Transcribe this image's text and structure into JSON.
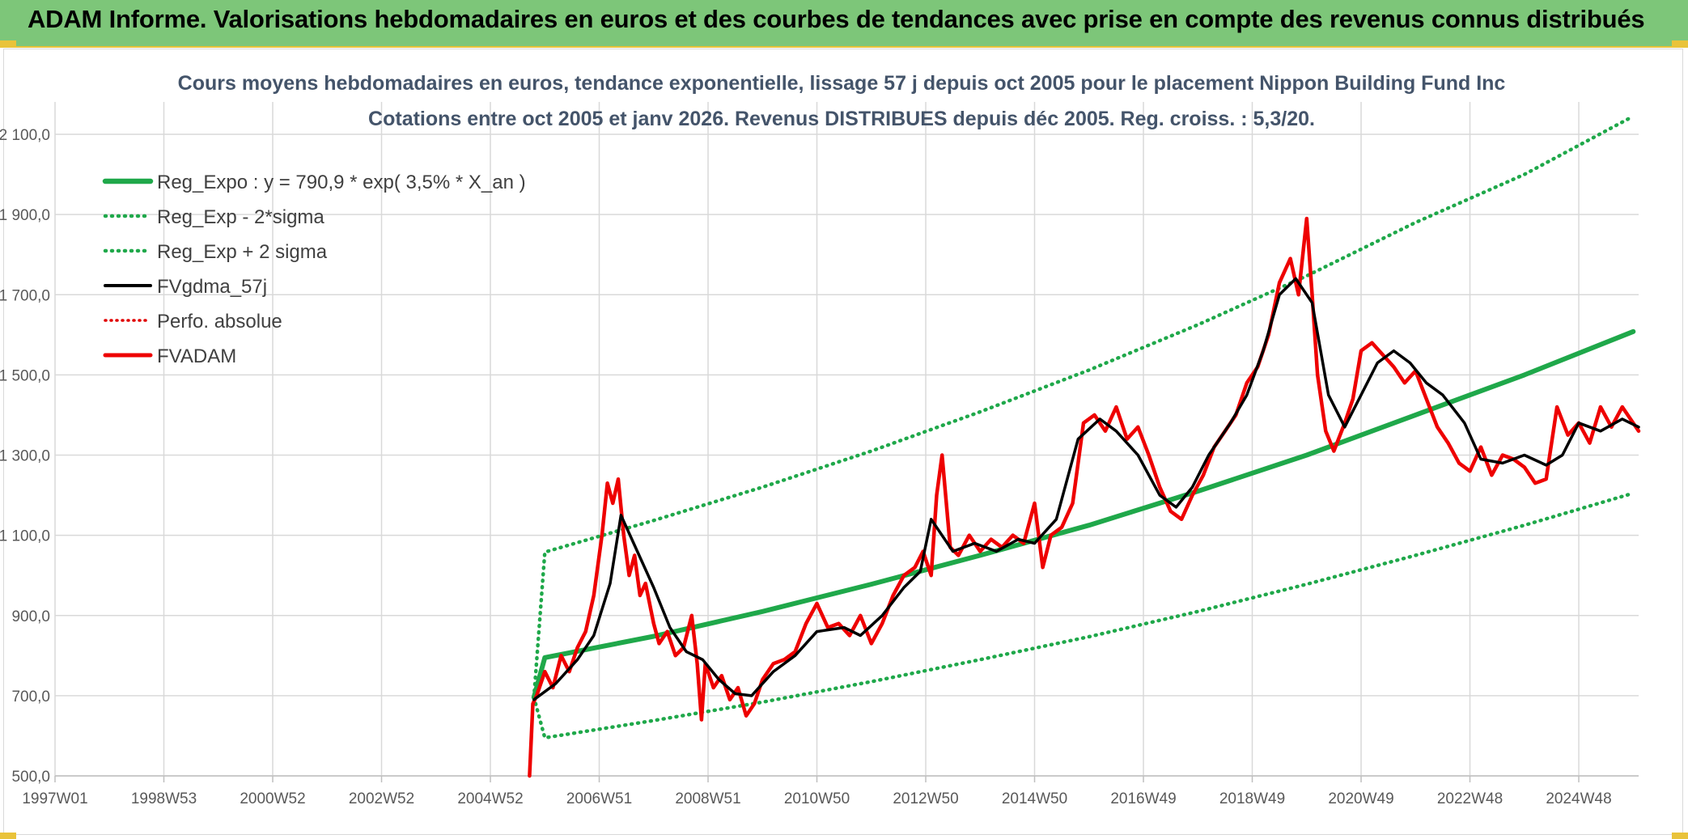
{
  "header": {
    "title": "ADAM Informe. Valorisations hebdomadaires en euros et des courbes de tendances avec prise en compte des revenus connus distribués"
  },
  "colors": {
    "banner": "#7dc679",
    "accent": "#e9c33a",
    "reg_expo": "#1fa84a",
    "sigma_bands": "#1fa84a",
    "fvgdma": "#000000",
    "perfo": "#e00000",
    "fvadam": "#ee0000",
    "grid": "#d9d9d9"
  },
  "chart_data": {
    "type": "line",
    "title": "Cours moyens hebdomadaires en euros, tendance exponentielle, lissage 57 j depuis oct 2005 pour le placement Nippon Building Fund Inc",
    "subtitle": "Cotations entre oct 2005 et janv 2026. Revenus DISTRIBUES depuis déc 2005. Reg. croiss. : 5,3/20.",
    "xlabel": "",
    "ylabel": "",
    "ylim": [
      500,
      2100
    ],
    "xlim": [
      1997.0,
      2026.1
    ],
    "grid": true,
    "legend_position": "top-left",
    "y_ticks": [
      "500,0",
      "700,0",
      "900,0",
      "1 100,0",
      "1 300,0",
      "1 500,0",
      "1 700,0",
      "1 900,0",
      "2 100,0"
    ],
    "y_tick_values": [
      500,
      700,
      900,
      1100,
      1300,
      1500,
      1700,
      1900,
      2100
    ],
    "x_ticks": [
      "1997W01",
      "1998W53",
      "2000W52",
      "2002W52",
      "2004W52",
      "2006W51",
      "2008W51",
      "2010W50",
      "2012W50",
      "2014W50",
      "2016W49",
      "2018W49",
      "2020W49",
      "2022W48",
      "2024W48"
    ],
    "x_tick_values": [
      1997.0,
      1999.0,
      2001.0,
      2003.0,
      2005.0,
      2007.0,
      2009.0,
      2011.0,
      2013.0,
      2015.0,
      2017.0,
      2019.0,
      2021.0,
      2023.0,
      2025.0
    ],
    "series": [
      {
        "name": "Reg_Expo : y = 790,9 * exp( 3,5% *  X_an )",
        "style": "solid",
        "x": [
          2005.8,
          2006.0,
          2008.0,
          2010.0,
          2012.0,
          2014.0,
          2016.0,
          2018.0,
          2020.0,
          2022.0,
          2024.0,
          2026.0
        ],
        "values": [
          696,
          795,
          848,
          910,
          978,
          1050,
          1125,
          1210,
          1300,
          1400,
          1500,
          1608
        ]
      },
      {
        "name": "Reg_Exp - 2*sigma",
        "style": "dotted",
        "x": [
          2005.8,
          2006.0,
          2008.0,
          2010.0,
          2012.0,
          2014.0,
          2016.0,
          2018.0,
          2020.0,
          2022.0,
          2024.0,
          2026.0
        ],
        "values": [
          696,
          595,
          638,
          684,
          735,
          790,
          847,
          910,
          978,
          1050,
          1125,
          1205
        ]
      },
      {
        "name": "Reg_Exp + 2 sigma",
        "style": "dotted",
        "x": [
          2005.8,
          2006.0,
          2008.0,
          2010.0,
          2012.0,
          2014.0,
          2016.0,
          2018.0,
          2020.0,
          2022.0,
          2024.0,
          2026.0
        ],
        "values": [
          696,
          1058,
          1137,
          1220,
          1310,
          1408,
          1512,
          1625,
          1747,
          1880,
          2000,
          2145
        ]
      },
      {
        "name": "FVgdma_57j",
        "style": "solid",
        "x": [
          2005.8,
          2006.2,
          2006.6,
          2006.9,
          2007.2,
          2007.4,
          2007.7,
          2008.0,
          2008.3,
          2008.6,
          2008.9,
          2009.2,
          2009.5,
          2009.8,
          2010.2,
          2010.6,
          2011.0,
          2011.5,
          2011.8,
          2012.2,
          2012.6,
          2012.9,
          2013.1,
          2013.5,
          2013.9,
          2014.3,
          2014.7,
          2015.0,
          2015.4,
          2015.8,
          2016.2,
          2016.5,
          2016.9,
          2017.3,
          2017.6,
          2017.9,
          2018.2,
          2018.6,
          2018.9,
          2019.2,
          2019.5,
          2019.8,
          2020.1,
          2020.4,
          2020.7,
          2021.0,
          2021.3,
          2021.6,
          2021.9,
          2022.2,
          2022.5,
          2022.9,
          2023.2,
          2023.6,
          2024.0,
          2024.4,
          2024.7,
          2025.0,
          2025.4,
          2025.8,
          2026.1
        ],
        "values": [
          690,
          730,
          790,
          850,
          980,
          1150,
          1060,
          970,
          870,
          810,
          790,
          740,
          705,
          700,
          760,
          800,
          860,
          870,
          850,
          900,
          970,
          1010,
          1140,
          1060,
          1080,
          1060,
          1090,
          1080,
          1140,
          1340,
          1390,
          1360,
          1300,
          1200,
          1170,
          1220,
          1300,
          1380,
          1450,
          1560,
          1700,
          1740,
          1680,
          1450,
          1370,
          1450,
          1530,
          1560,
          1530,
          1480,
          1450,
          1380,
          1290,
          1280,
          1300,
          1275,
          1300,
          1380,
          1360,
          1390,
          1370
        ]
      },
      {
        "name": "Perfo. absolue",
        "style": "dotted",
        "x": [],
        "values": []
      },
      {
        "name": "FVADAM",
        "style": "solid",
        "x": [
          2005.72,
          2005.78,
          2005.85,
          2006.0,
          2006.15,
          2006.3,
          2006.45,
          2006.6,
          2006.75,
          2006.9,
          2007.05,
          2007.15,
          2007.25,
          2007.35,
          2007.45,
          2007.55,
          2007.65,
          2007.75,
          2007.85,
          2008.0,
          2008.1,
          2008.25,
          2008.4,
          2008.55,
          2008.7,
          2008.8,
          2008.88,
          2008.95,
          2009.1,
          2009.25,
          2009.4,
          2009.55,
          2009.7,
          2009.85,
          2010.0,
          2010.2,
          2010.4,
          2010.6,
          2010.8,
          2011.0,
          2011.2,
          2011.4,
          2011.6,
          2011.8,
          2012.0,
          2012.2,
          2012.4,
          2012.6,
          2012.8,
          2012.95,
          2013.1,
          2013.2,
          2013.3,
          2013.45,
          2013.6,
          2013.8,
          2014.0,
          2014.2,
          2014.4,
          2014.6,
          2014.8,
          2015.0,
          2015.15,
          2015.3,
          2015.5,
          2015.7,
          2015.9,
          2016.1,
          2016.3,
          2016.5,
          2016.7,
          2016.9,
          2017.1,
          2017.3,
          2017.5,
          2017.7,
          2017.9,
          2018.1,
          2018.3,
          2018.5,
          2018.7,
          2018.9,
          2019.1,
          2019.3,
          2019.5,
          2019.7,
          2019.85,
          2020.0,
          2020.1,
          2020.2,
          2020.35,
          2020.5,
          2020.7,
          2020.85,
          2021.0,
          2021.2,
          2021.4,
          2021.6,
          2021.8,
          2022.0,
          2022.2,
          2022.4,
          2022.6,
          2022.8,
          2023.0,
          2023.2,
          2023.4,
          2023.6,
          2023.8,
          2024.0,
          2024.2,
          2024.4,
          2024.6,
          2024.8,
          2025.0,
          2025.2,
          2025.4,
          2025.6,
          2025.8,
          2025.95,
          2026.1
        ],
        "values": [
          500,
          680,
          700,
          760,
          720,
          800,
          760,
          820,
          860,
          950,
          1100,
          1230,
          1180,
          1240,
          1100,
          1000,
          1050,
          950,
          980,
          880,
          830,
          860,
          800,
          820,
          900,
          780,
          640,
          780,
          720,
          750,
          690,
          720,
          650,
          680,
          740,
          780,
          790,
          810,
          880,
          930,
          870,
          880,
          850,
          900,
          830,
          880,
          950,
          1000,
          1020,
          1060,
          1000,
          1200,
          1300,
          1070,
          1050,
          1100,
          1060,
          1090,
          1070,
          1100,
          1080,
          1180,
          1020,
          1100,
          1120,
          1180,
          1380,
          1400,
          1360,
          1420,
          1340,
          1370,
          1300,
          1220,
          1160,
          1140,
          1200,
          1250,
          1320,
          1360,
          1400,
          1480,
          1520,
          1600,
          1730,
          1790,
          1700,
          1890,
          1700,
          1500,
          1360,
          1310,
          1380,
          1440,
          1560,
          1580,
          1550,
          1520,
          1480,
          1510,
          1440,
          1370,
          1330,
          1280,
          1260,
          1320,
          1250,
          1300,
          1290,
          1270,
          1230,
          1240,
          1420,
          1350,
          1380,
          1330,
          1420,
          1370,
          1420,
          1390,
          1360
        ]
      }
    ]
  }
}
